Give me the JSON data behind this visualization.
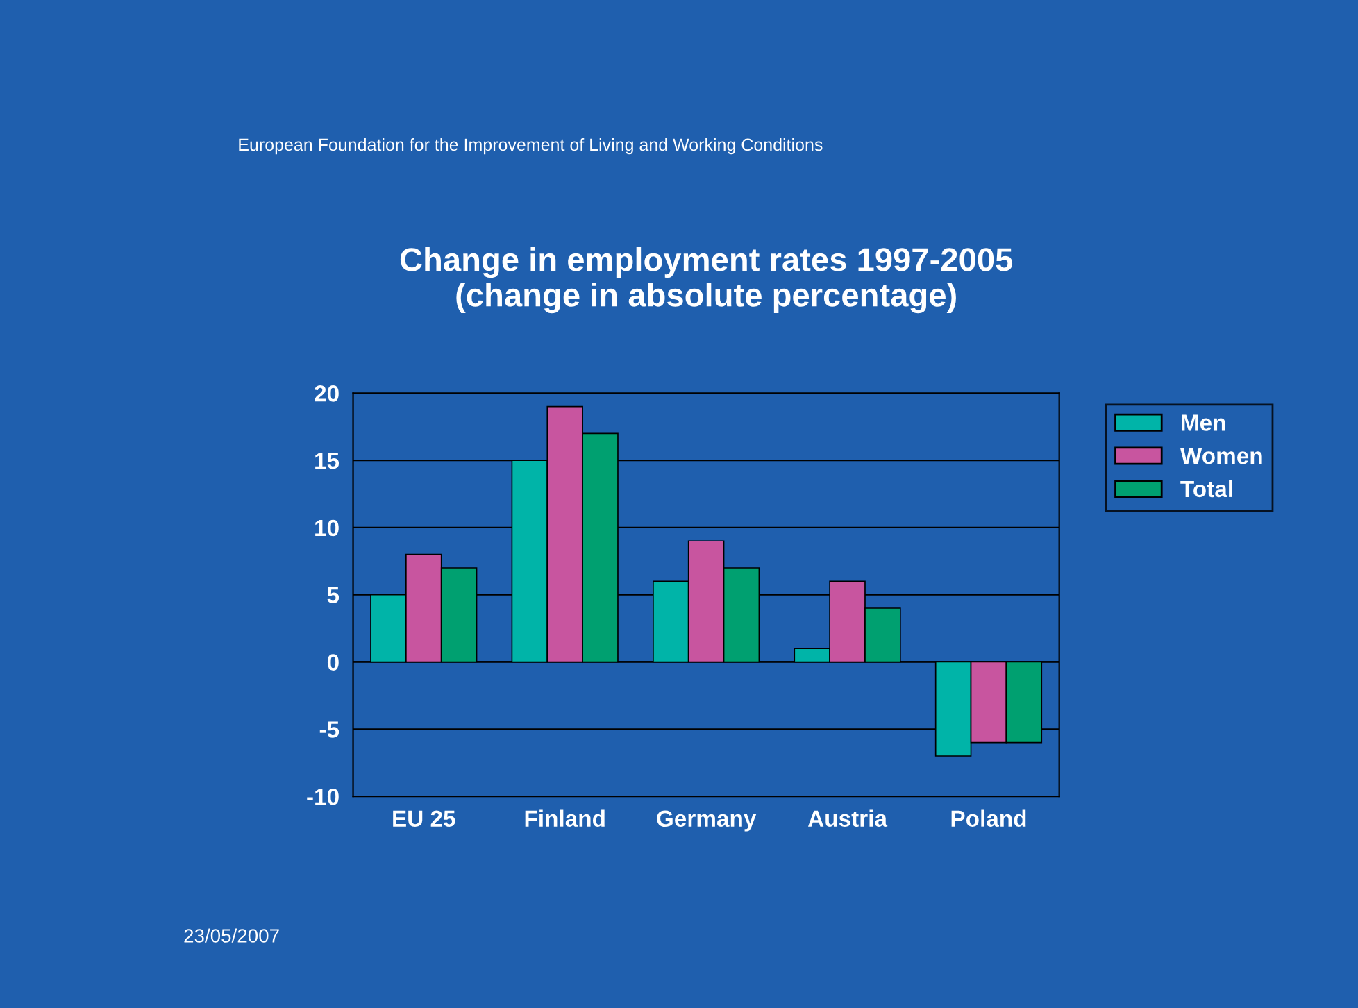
{
  "chart_data": {
    "type": "bar",
    "title": "Change in employment rates 1997-2005\n(change in absolute percentage)",
    "categories": [
      "EU 25",
      "Finland",
      "Germany",
      "Austria",
      "Poland"
    ],
    "series": [
      {
        "name": "Men",
        "color": "#00b4a8",
        "values": [
          5,
          15,
          6,
          1,
          -7
        ]
      },
      {
        "name": "Women",
        "color": "#c8559f",
        "values": [
          8,
          19,
          9,
          6,
          -6
        ]
      },
      {
        "name": "Total",
        "color": "#00a070",
        "values": [
          7,
          17,
          7,
          4,
          -6
        ]
      }
    ],
    "ylim": [
      -10,
      20
    ],
    "yticks": [
      -10,
      -5,
      0,
      5,
      10,
      15,
      20
    ],
    "grid": "y",
    "legend": "top right",
    "annotations": [
      "European Foundation for the Improvement of Living and Working Conditions",
      "23/05/2007"
    ]
  }
}
